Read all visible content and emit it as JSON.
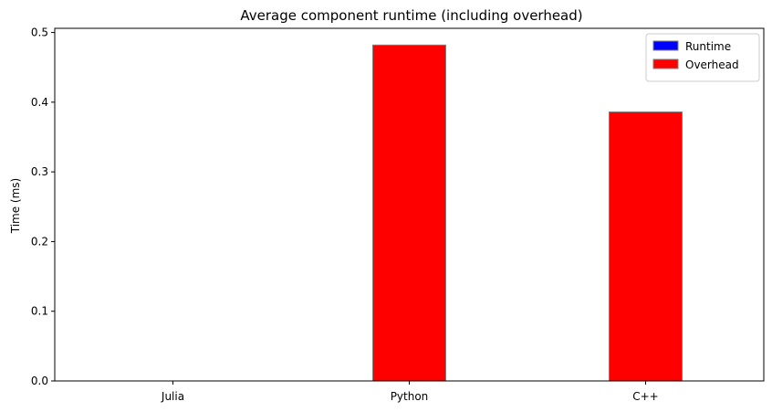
{
  "chart_data": {
    "type": "bar",
    "stacked": true,
    "title": "Average component runtime (including overhead)",
    "xlabel": "",
    "ylabel": "Time (ms)",
    "categories": [
      "Julia",
      "Python",
      "C++"
    ],
    "series": [
      {
        "name": "Runtime",
        "color": "#0000ff",
        "values": [
          0.0,
          0.0,
          0.0
        ]
      },
      {
        "name": "Overhead",
        "color": "#ff0000",
        "values": [
          0.0,
          0.482,
          0.386
        ]
      }
    ],
    "ylim": [
      0,
      0.506
    ],
    "yticks": [
      "0.0",
      "0.1",
      "0.2",
      "0.3",
      "0.4",
      "0.5"
    ],
    "bar_edge_color": "#808080",
    "grid": false,
    "legend_position": "top-right"
  }
}
